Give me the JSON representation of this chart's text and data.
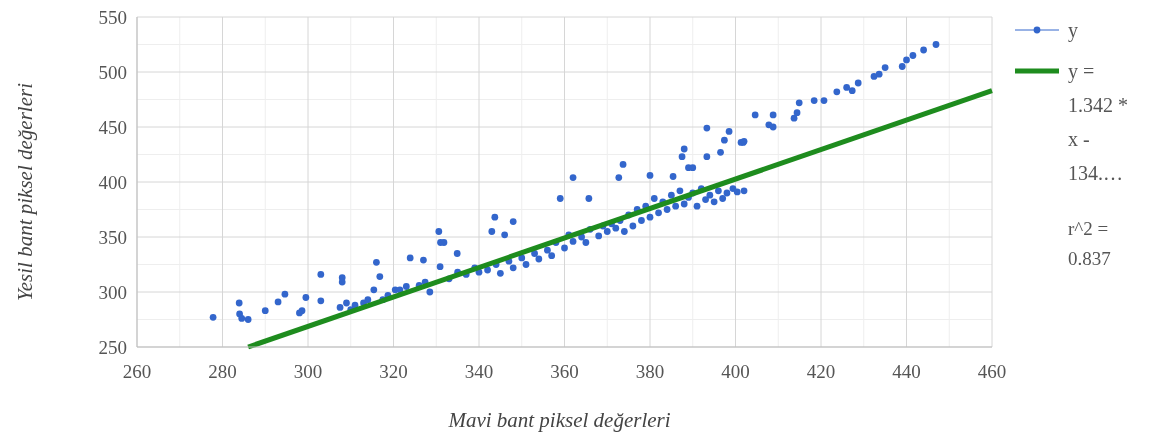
{
  "chart_data": {
    "type": "scatter",
    "xlabel": "Mavi bant piksel değerleri",
    "ylabel": "Yesil bant piksel değerleri",
    "xlim": [
      260,
      460
    ],
    "xticks": [
      260,
      280,
      300,
      320,
      340,
      360,
      380,
      400,
      420,
      440,
      460
    ],
    "ylim": [
      250,
      550
    ],
    "yticks": [
      250,
      300,
      350,
      400,
      450,
      500,
      550
    ],
    "grid": true,
    "legend": "right",
    "annotations": [
      "r^2 = 0.837"
    ],
    "series": [
      {
        "name": "y",
        "color": "#3366cc",
        "marker": "circle",
        "x": [
          277.8,
          283.9,
          284,
          284.5,
          286,
          290,
          293,
          294.6,
          298.6,
          298,
          299.5,
          303,
          303,
          307.5,
          308,
          308,
          309,
          310,
          311,
          313,
          314,
          315.4,
          316,
          316.8,
          317.5,
          318.7,
          320.4,
          321.5,
          323,
          323.9,
          326,
          327,
          327.4,
          328.5,
          330.6,
          331,
          334.9,
          330.9,
          331.8,
          343.7,
          348,
          343,
          346,
          362,
          359,
          365.7,
          373.7,
          372.7,
          380,
          385.4,
          388,
          387.5,
          389,
          390,
          393.3,
          393.3,
          396.5,
          397.4,
          398.5,
          401.8,
          401.3,
          402,
          404.6,
          407.8,
          408.8,
          408.8,
          413.7,
          414.4,
          414.9,
          418.4,
          420.7,
          423.7,
          426,
          427.3,
          428.7,
          432.4,
          433.6,
          435,
          439,
          440,
          441.5,
          444,
          446.9,
          399.4,
          400.4,
          402,
          333,
          335,
          337,
          339,
          340,
          342,
          344,
          345,
          347,
          348,
          350,
          351,
          353,
          354,
          356,
          357,
          358,
          360,
          361,
          362,
          364,
          365,
          366,
          368,
          369,
          370,
          371,
          372,
          373,
          374,
          375,
          376,
          377,
          378,
          379,
          380,
          381,
          382,
          383,
          384,
          385,
          386,
          387,
          388,
          389,
          390,
          391,
          392,
          393,
          394,
          395,
          396,
          397,
          398
        ],
        "values": [
          277,
          290,
          280,
          276,
          275,
          283,
          291,
          298,
          283,
          281,
          295,
          292,
          316,
          286,
          313,
          309,
          290,
          284,
          288,
          290,
          293,
          302,
          327,
          314,
          293,
          297,
          302,
          302,
          305,
          331,
          306,
          329,
          309,
          300,
          355,
          345,
          335,
          323,
          345,
          368,
          364,
          355,
          352,
          404,
          385,
          385,
          416,
          404,
          406,
          405,
          430,
          423,
          413,
          413,
          449,
          423,
          427,
          438,
          446,
          436,
          436,
          437,
          461,
          452,
          461,
          450,
          458,
          463,
          472,
          474,
          474,
          482,
          486,
          483,
          490,
          496,
          498,
          504,
          505,
          511,
          515,
          520,
          525,
          394,
          391,
          392,
          312,
          318,
          316,
          322,
          318,
          320,
          325,
          317,
          328,
          322,
          331,
          325,
          335,
          330,
          338,
          333,
          345,
          340,
          352,
          346,
          350,
          345,
          357,
          351,
          360,
          355,
          362,
          358,
          365,
          355,
          370,
          360,
          375,
          365,
          378,
          368,
          385,
          372,
          382,
          375,
          388,
          378,
          392,
          380,
          386,
          390,
          378,
          394,
          384,
          388,
          382,
          392,
          385,
          390
        ]
      },
      {
        "name": "y = 1.342 * x - 134.…",
        "type": "line",
        "color": "#1e8c1e",
        "marker": "none",
        "x": [
          286,
          460
        ],
        "values": [
          250,
          483
        ]
      }
    ]
  }
}
